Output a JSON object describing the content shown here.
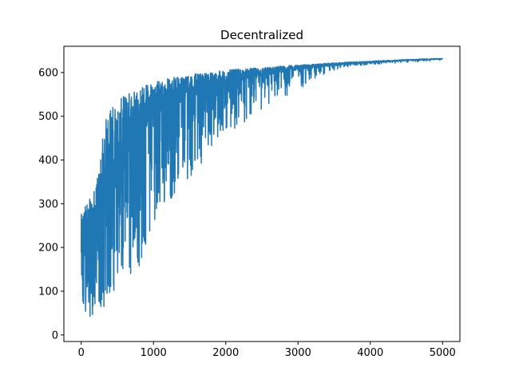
{
  "chart_data": {
    "type": "line",
    "title": "Decentralized",
    "xlabel": "",
    "ylabel": "",
    "xlim": [
      -240,
      5240
    ],
    "ylim": [
      -15,
      660
    ],
    "x_ticks": [
      0,
      1000,
      2000,
      3000,
      4000,
      5000
    ],
    "x_tick_labels": [
      "0",
      "1000",
      "2000",
      "3000",
      "4000",
      "5000"
    ],
    "y_ticks": [
      0,
      100,
      200,
      300,
      400,
      500,
      600
    ],
    "y_tick_labels": [
      "0",
      "100",
      "200",
      "300",
      "400",
      "500",
      "600"
    ],
    "grid": false,
    "legend": "none",
    "colors": {
      "series": "#1f77b4",
      "axes": "#000000",
      "background": "#ffffff"
    },
    "series": [
      {
        "x": [
          0,
          50,
          100,
          150,
          200,
          250,
          300,
          350,
          400,
          450,
          500,
          550,
          600,
          650,
          700,
          750,
          800,
          850,
          900,
          950,
          1000,
          1050,
          1100,
          1150,
          1200,
          1250,
          1300,
          1350,
          1400,
          1450,
          1500,
          1550,
          1600,
          1650,
          1700,
          1750,
          1800,
          1850,
          1900,
          1950,
          2000,
          2100,
          2200,
          2300,
          2400,
          2500,
          2600,
          2700,
          2800,
          2900,
          3000,
          3100,
          3200,
          3300,
          3400,
          3500,
          3600,
          3700,
          3800,
          3900,
          4000,
          4100,
          4200,
          4300,
          4400,
          4500,
          4600,
          4700,
          4800,
          4900,
          5000
        ],
        "upper": [
          275,
          300,
          305,
          320,
          340,
          380,
          470,
          500,
          520,
          530,
          530,
          540,
          550,
          555,
          560,
          565,
          570,
          570,
          575,
          580,
          580,
          582,
          585,
          586,
          588,
          590,
          590,
          592,
          594,
          595,
          596,
          597,
          598,
          598,
          600,
          600,
          601,
          602,
          603,
          604,
          605,
          607,
          608,
          609,
          610,
          611,
          612,
          614,
          615,
          616,
          617,
          618,
          619,
          620,
          621,
          622,
          623,
          624,
          625,
          625,
          626,
          627,
          628,
          628,
          629,
          630,
          630,
          631,
          631,
          632,
          632
        ],
        "typical": [
          150,
          170,
          180,
          200,
          215,
          240,
          260,
          280,
          300,
          320,
          340,
          360,
          380,
          400,
          420,
          440,
          450,
          460,
          470,
          480,
          490,
          500,
          505,
          510,
          515,
          520,
          525,
          530,
          535,
          540,
          545,
          548,
          550,
          553,
          555,
          558,
          560,
          562,
          565,
          568,
          570,
          575,
          580,
          585,
          588,
          590,
          595,
          598,
          600,
          603,
          606,
          608,
          610,
          612,
          614,
          616,
          617,
          619,
          620,
          621,
          622,
          623,
          624,
          625,
          626,
          627,
          628,
          628,
          629,
          630,
          630
        ],
        "lower": [
          20,
          35,
          40,
          45,
          50,
          55,
          60,
          75,
          90,
          100,
          110,
          120,
          125,
          130,
          135,
          140,
          150,
          170,
          200,
          230,
          260,
          270,
          280,
          290,
          300,
          310,
          320,
          330,
          340,
          350,
          360,
          370,
          380,
          390,
          400,
          410,
          420,
          430,
          440,
          450,
          460,
          470,
          480,
          490,
          500,
          510,
          520,
          530,
          540,
          550,
          560,
          570,
          580,
          590,
          600,
          605,
          610,
          613,
          615,
          617,
          618,
          619,
          620,
          621,
          622,
          623,
          624,
          625,
          626,
          627,
          628
        ]
      }
    ]
  }
}
